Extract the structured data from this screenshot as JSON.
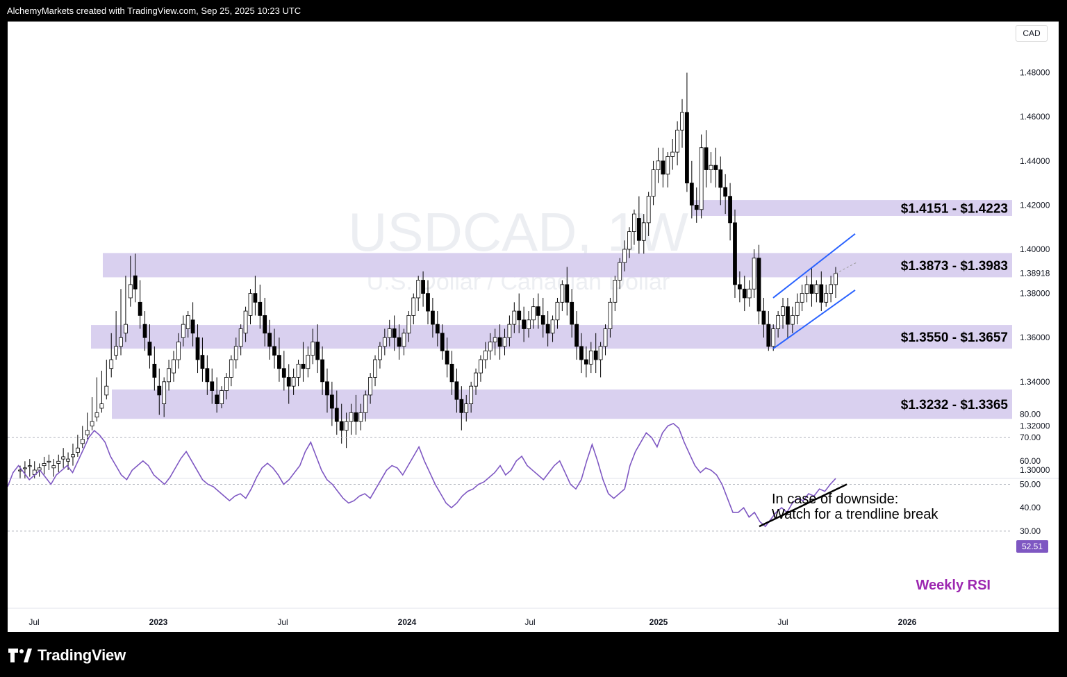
{
  "header": {
    "title": "AlchemyMarkets created with TradingView.com, Sep 25, 2025 10:23 UTC"
  },
  "footer": {
    "brand": "TradingView"
  },
  "chart": {
    "currency": "CAD",
    "watermark_symbol": "USDCAD, 1W",
    "watermark_name": "U.S. Dollar / Canadian Dollar",
    "last_price": "1.38918",
    "rsi_last": "52.51"
  },
  "chart_data": [
    {
      "type": "candlestick",
      "symbol": "USDCAD",
      "interval": "1W",
      "ylim": [
        1.295,
        1.49
      ],
      "y_ticks": [
        {
          "label": "1.48000",
          "value": 1.48
        },
        {
          "label": "1.46000",
          "value": 1.46
        },
        {
          "label": "1.44000",
          "value": 1.44
        },
        {
          "label": "1.42000",
          "value": 1.42
        },
        {
          "label": "1.40000",
          "value": 1.4
        },
        {
          "label": "1.38918",
          "value": 1.38918
        },
        {
          "label": "1.38000",
          "value": 1.38
        },
        {
          "label": "1.36000",
          "value": 1.36
        },
        {
          "label": "1.34000",
          "value": 1.34
        },
        {
          "label": "1.32000",
          "value": 1.32
        },
        {
          "label": "1.30000",
          "value": 1.3
        }
      ],
      "x_ticks": [
        "Jul",
        "2023",
        "Jul",
        "2024",
        "Jul",
        "2025",
        "Jul",
        "2026"
      ],
      "zones": [
        {
          "label": "$1.4151 - $1.4223",
          "low": 1.4151,
          "high": 1.4223
        },
        {
          "label": "$1.3873 - $1.3983",
          "low": 1.3873,
          "high": 1.3983
        },
        {
          "label": "$1.3550 - $1.3657",
          "low": 1.355,
          "high": 1.3657
        },
        {
          "label": "$1.3232 - $1.3365",
          "low": 1.3232,
          "high": 1.3365
        }
      ],
      "candles": [
        [
          1.3,
          1.302,
          1.3,
          1.296
        ],
        [
          1.301,
          1.304,
          1.301,
          1.296
        ],
        [
          1.302,
          1.305,
          1.302,
          1.297
        ],
        [
          1.298,
          1.304,
          1.3,
          1.296
        ],
        [
          1.3,
          1.303,
          1.301,
          1.297
        ],
        [
          1.302,
          1.306,
          1.303,
          1.298
        ],
        [
          1.304,
          1.307,
          1.304,
          1.3
        ],
        [
          1.301,
          1.305,
          1.302,
          1.297
        ],
        [
          1.303,
          1.307,
          1.304,
          1.299
        ],
        [
          1.305,
          1.31,
          1.306,
          1.301
        ],
        [
          1.304,
          1.308,
          1.305,
          1.3
        ],
        [
          1.306,
          1.312,
          1.307,
          1.302
        ],
        [
          1.308,
          1.316,
          1.31,
          1.306
        ],
        [
          1.312,
          1.32,
          1.314,
          1.31
        ],
        [
          1.316,
          1.326,
          1.318,
          1.314
        ],
        [
          1.32,
          1.333,
          1.322,
          1.318
        ],
        [
          1.324,
          1.342,
          1.326,
          1.322
        ],
        [
          1.328,
          1.345,
          1.33,
          1.326
        ],
        [
          1.334,
          1.35,
          1.338,
          1.332
        ],
        [
          1.346,
          1.362,
          1.35,
          1.342
        ],
        [
          1.352,
          1.372,
          1.356,
          1.35
        ],
        [
          1.356,
          1.382,
          1.36,
          1.352
        ],
        [
          1.362,
          1.388,
          1.366,
          1.358
        ],
        [
          1.378,
          1.397,
          1.384,
          1.374
        ],
        [
          1.388,
          1.398,
          1.382,
          1.376
        ],
        [
          1.376,
          1.386,
          1.37,
          1.364
        ],
        [
          1.366,
          1.372,
          1.36,
          1.354
        ],
        [
          1.358,
          1.366,
          1.352,
          1.346
        ],
        [
          1.348,
          1.356,
          1.342,
          1.336
        ],
        [
          1.338,
          1.346,
          1.334,
          1.325
        ],
        [
          1.33,
          1.342,
          1.34,
          1.324
        ],
        [
          1.34,
          1.35,
          1.346,
          1.336
        ],
        [
          1.344,
          1.354,
          1.35,
          1.34
        ],
        [
          1.35,
          1.362,
          1.358,
          1.346
        ],
        [
          1.36,
          1.37,
          1.366,
          1.356
        ],
        [
          1.364,
          1.372,
          1.37,
          1.36
        ],
        [
          1.368,
          1.376,
          1.362,
          1.356
        ],
        [
          1.36,
          1.366,
          1.35,
          1.344
        ],
        [
          1.352,
          1.36,
          1.346,
          1.34
        ],
        [
          1.346,
          1.352,
          1.34,
          1.334
        ],
        [
          1.34,
          1.346,
          1.336,
          1.33
        ],
        [
          1.334,
          1.342,
          1.33,
          1.326
        ],
        [
          1.33,
          1.338,
          1.336,
          1.328
        ],
        [
          1.336,
          1.344,
          1.342,
          1.332
        ],
        [
          1.342,
          1.352,
          1.35,
          1.338
        ],
        [
          1.35,
          1.36,
          1.356,
          1.346
        ],
        [
          1.356,
          1.366,
          1.364,
          1.352
        ],
        [
          1.362,
          1.374,
          1.372,
          1.358
        ],
        [
          1.37,
          1.382,
          1.38,
          1.366
        ],
        [
          1.38,
          1.388,
          1.376,
          1.37
        ],
        [
          1.376,
          1.384,
          1.37,
          1.364
        ],
        [
          1.37,
          1.378,
          1.362,
          1.356
        ],
        [
          1.362,
          1.368,
          1.356,
          1.35
        ],
        [
          1.356,
          1.364,
          1.352,
          1.346
        ],
        [
          1.352,
          1.36,
          1.346,
          1.34
        ],
        [
          1.346,
          1.354,
          1.342,
          1.336
        ],
        [
          1.342,
          1.348,
          1.338,
          1.33
        ],
        [
          1.338,
          1.346,
          1.342,
          1.334
        ],
        [
          1.342,
          1.35,
          1.348,
          1.338
        ],
        [
          1.348,
          1.358,
          1.346,
          1.34
        ],
        [
          1.346,
          1.356,
          1.352,
          1.342
        ],
        [
          1.352,
          1.364,
          1.358,
          1.348
        ],
        [
          1.358,
          1.366,
          1.35,
          1.344
        ],
        [
          1.35,
          1.356,
          1.34,
          1.334
        ],
        [
          1.34,
          1.346,
          1.334,
          1.326
        ],
        [
          1.334,
          1.34,
          1.328,
          1.32
        ],
        [
          1.328,
          1.336,
          1.322,
          1.316
        ],
        [
          1.322,
          1.33,
          1.318,
          1.312
        ],
        [
          1.318,
          1.326,
          1.322,
          1.31
        ],
        [
          1.322,
          1.33,
          1.326,
          1.316
        ],
        [
          1.326,
          1.334,
          1.322,
          1.316
        ],
        [
          1.322,
          1.33,
          1.326,
          1.318
        ],
        [
          1.326,
          1.336,
          1.334,
          1.322
        ],
        [
          1.334,
          1.344,
          1.342,
          1.33
        ],
        [
          1.342,
          1.352,
          1.35,
          1.338
        ],
        [
          1.35,
          1.358,
          1.356,
          1.346
        ],
        [
          1.356,
          1.364,
          1.36,
          1.352
        ],
        [
          1.36,
          1.368,
          1.364,
          1.356
        ],
        [
          1.364,
          1.37,
          1.36,
          1.354
        ],
        [
          1.36,
          1.366,
          1.356,
          1.35
        ],
        [
          1.356,
          1.364,
          1.362,
          1.352
        ],
        [
          1.362,
          1.372,
          1.37,
          1.358
        ],
        [
          1.37,
          1.38,
          1.378,
          1.366
        ],
        [
          1.378,
          1.388,
          1.386,
          1.372
        ],
        [
          1.386,
          1.39,
          1.38,
          1.374
        ],
        [
          1.38,
          1.386,
          1.372,
          1.366
        ],
        [
          1.372,
          1.378,
          1.366,
          1.36
        ],
        [
          1.366,
          1.372,
          1.362,
          1.356
        ],
        [
          1.362,
          1.366,
          1.354,
          1.35
        ],
        [
          1.354,
          1.36,
          1.348,
          1.342
        ],
        [
          1.348,
          1.354,
          1.34,
          1.334
        ],
        [
          1.34,
          1.346,
          1.332,
          1.326
        ],
        [
          1.332,
          1.338,
          1.326,
          1.318
        ],
        [
          1.326,
          1.334,
          1.33,
          1.322
        ],
        [
          1.33,
          1.34,
          1.338,
          1.326
        ],
        [
          1.338,
          1.346,
          1.344,
          1.334
        ],
        [
          1.344,
          1.352,
          1.35,
          1.34
        ],
        [
          1.35,
          1.358,
          1.354,
          1.346
        ],
        [
          1.354,
          1.362,
          1.358,
          1.35
        ],
        [
          1.358,
          1.364,
          1.36,
          1.352
        ],
        [
          1.36,
          1.366,
          1.356,
          1.35
        ],
        [
          1.356,
          1.364,
          1.36,
          1.352
        ],
        [
          1.36,
          1.37,
          1.366,
          1.356
        ],
        [
          1.366,
          1.376,
          1.372,
          1.362
        ],
        [
          1.372,
          1.38,
          1.368,
          1.362
        ],
        [
          1.368,
          1.374,
          1.364,
          1.358
        ],
        [
          1.364,
          1.372,
          1.368,
          1.36
        ],
        [
          1.368,
          1.378,
          1.374,
          1.364
        ],
        [
          1.374,
          1.38,
          1.37,
          1.364
        ],
        [
          1.37,
          1.378,
          1.366,
          1.36
        ],
        [
          1.366,
          1.372,
          1.362,
          1.356
        ],
        [
          1.362,
          1.37,
          1.368,
          1.358
        ],
        [
          1.368,
          1.378,
          1.376,
          1.364
        ],
        [
          1.376,
          1.386,
          1.384,
          1.372
        ],
        [
          1.384,
          1.392,
          1.376,
          1.37
        ],
        [
          1.376,
          1.382,
          1.366,
          1.36
        ],
        [
          1.366,
          1.372,
          1.356,
          1.35
        ],
        [
          1.356,
          1.362,
          1.35,
          1.344
        ],
        [
          1.35,
          1.356,
          1.348,
          1.342
        ],
        [
          1.348,
          1.358,
          1.354,
          1.344
        ],
        [
          1.354,
          1.362,
          1.35,
          1.344
        ],
        [
          1.35,
          1.358,
          1.356,
          1.342
        ],
        [
          1.356,
          1.366,
          1.364,
          1.352
        ],
        [
          1.364,
          1.378,
          1.376,
          1.36
        ],
        [
          1.376,
          1.388,
          1.386,
          1.372
        ],
        [
          1.386,
          1.396,
          1.394,
          1.382
        ],
        [
          1.394,
          1.404,
          1.4,
          1.39
        ],
        [
          1.4,
          1.41,
          1.408,
          1.396
        ],
        [
          1.408,
          1.418,
          1.416,
          1.402
        ],
        [
          1.414,
          1.424,
          1.404,
          1.398
        ],
        [
          1.404,
          1.416,
          1.412,
          1.398
        ],
        [
          1.412,
          1.426,
          1.424,
          1.406
        ],
        [
          1.424,
          1.44,
          1.436,
          1.42
        ],
        [
          1.436,
          1.446,
          1.44,
          1.43
        ],
        [
          1.44,
          1.446,
          1.434,
          1.428
        ],
        [
          1.434,
          1.444,
          1.442,
          1.428
        ],
        [
          1.442,
          1.45,
          1.444,
          1.436
        ],
        [
          1.444,
          1.458,
          1.454,
          1.438
        ],
        [
          1.454,
          1.468,
          1.462,
          1.446
        ],
        [
          1.462,
          1.48,
          1.43,
          1.426
        ],
        [
          1.43,
          1.44,
          1.42,
          1.414
        ],
        [
          1.42,
          1.428,
          1.418,
          1.412
        ],
        [
          1.418,
          1.452,
          1.446,
          1.414
        ],
        [
          1.446,
          1.454,
          1.436,
          1.428
        ],
        [
          1.436,
          1.444,
          1.438,
          1.43
        ],
        [
          1.438,
          1.446,
          1.436,
          1.428
        ],
        [
          1.436,
          1.442,
          1.428,
          1.42
        ],
        [
          1.428,
          1.434,
          1.424,
          1.416
        ],
        [
          1.424,
          1.43,
          1.412,
          1.404
        ],
        [
          1.412,
          1.418,
          1.384,
          1.378
        ],
        [
          1.384,
          1.39,
          1.382,
          1.376
        ],
        [
          1.382,
          1.388,
          1.378,
          1.372
        ],
        [
          1.378,
          1.386,
          1.382,
          1.374
        ],
        [
          1.382,
          1.4,
          1.396,
          1.378
        ],
        [
          1.396,
          1.402,
          1.372,
          1.366
        ],
        [
          1.372,
          1.378,
          1.366,
          1.36
        ],
        [
          1.366,
          1.372,
          1.356,
          1.354
        ],
        [
          1.356,
          1.366,
          1.364,
          1.354
        ],
        [
          1.364,
          1.372,
          1.37,
          1.36
        ],
        [
          1.37,
          1.378,
          1.374,
          1.364
        ],
        [
          1.374,
          1.378,
          1.366,
          1.36
        ],
        [
          1.366,
          1.374,
          1.37,
          1.362
        ],
        [
          1.37,
          1.38,
          1.376,
          1.366
        ],
        [
          1.376,
          1.384,
          1.38,
          1.372
        ],
        [
          1.38,
          1.388,
          1.384,
          1.376
        ],
        [
          1.384,
          1.392,
          1.38,
          1.374
        ],
        [
          1.38,
          1.386,
          1.384,
          1.376
        ],
        [
          1.384,
          1.39,
          1.376,
          1.372
        ],
        [
          1.376,
          1.384,
          1.38,
          1.374
        ],
        [
          1.38,
          1.388,
          1.384,
          1.376
        ],
        [
          1.384,
          1.392,
          1.389,
          1.378
        ]
      ],
      "channel": {
        "upper": [
          [
            1.378,
            1.408
          ],
          [
            1.386,
            1.416
          ]
        ],
        "lower": [
          [
            1.355,
            1.382
          ],
          [
            1.36,
            1.388
          ]
        ]
      }
    },
    {
      "type": "line",
      "name": "Weekly RSI",
      "ylim": [
        27,
        81
      ],
      "y_ticks": [
        "80.00",
        "70.00",
        "60.00",
        "50.00",
        "40.00",
        "30.00"
      ],
      "reference_lines": [
        70,
        50,
        30
      ],
      "last_value": 52.51,
      "values": [
        49,
        55,
        58,
        55,
        52,
        54,
        56,
        53,
        50,
        54,
        56,
        58,
        55,
        60,
        65,
        70,
        73,
        71,
        68,
        62,
        58,
        54,
        52,
        56,
        58,
        60,
        58,
        54,
        52,
        50,
        53,
        57,
        61,
        64,
        60,
        56,
        52,
        50,
        49,
        47,
        45,
        43,
        45,
        46,
        44,
        48,
        53,
        57,
        59,
        57,
        54,
        50,
        52,
        55,
        58,
        64,
        68,
        62,
        56,
        52,
        50,
        47,
        44,
        42,
        43,
        45,
        46,
        44,
        48,
        52,
        56,
        58,
        57,
        54,
        58,
        62,
        66,
        60,
        55,
        50,
        46,
        42,
        40,
        42,
        45,
        47,
        48,
        50,
        51,
        53,
        55,
        58,
        54,
        56,
        60,
        62,
        58,
        56,
        54,
        52,
        55,
        58,
        60,
        55,
        50,
        48,
        52,
        60,
        67,
        60,
        52,
        46,
        44,
        46,
        48,
        58,
        64,
        68,
        72,
        70,
        66,
        72,
        75,
        76,
        74,
        68,
        63,
        58,
        55,
        57,
        56,
        54,
        50,
        44,
        38,
        38,
        40,
        36,
        38,
        34,
        32,
        35,
        38,
        40,
        38,
        42,
        44,
        43,
        46,
        45,
        48,
        47,
        50,
        52.5
      ]
    }
  ],
  "annotations": {
    "rsi_note_line1": "In case of downside:",
    "rsi_note_line2": "Watch for a trendline break",
    "rsi_label": "Weekly RSI"
  }
}
